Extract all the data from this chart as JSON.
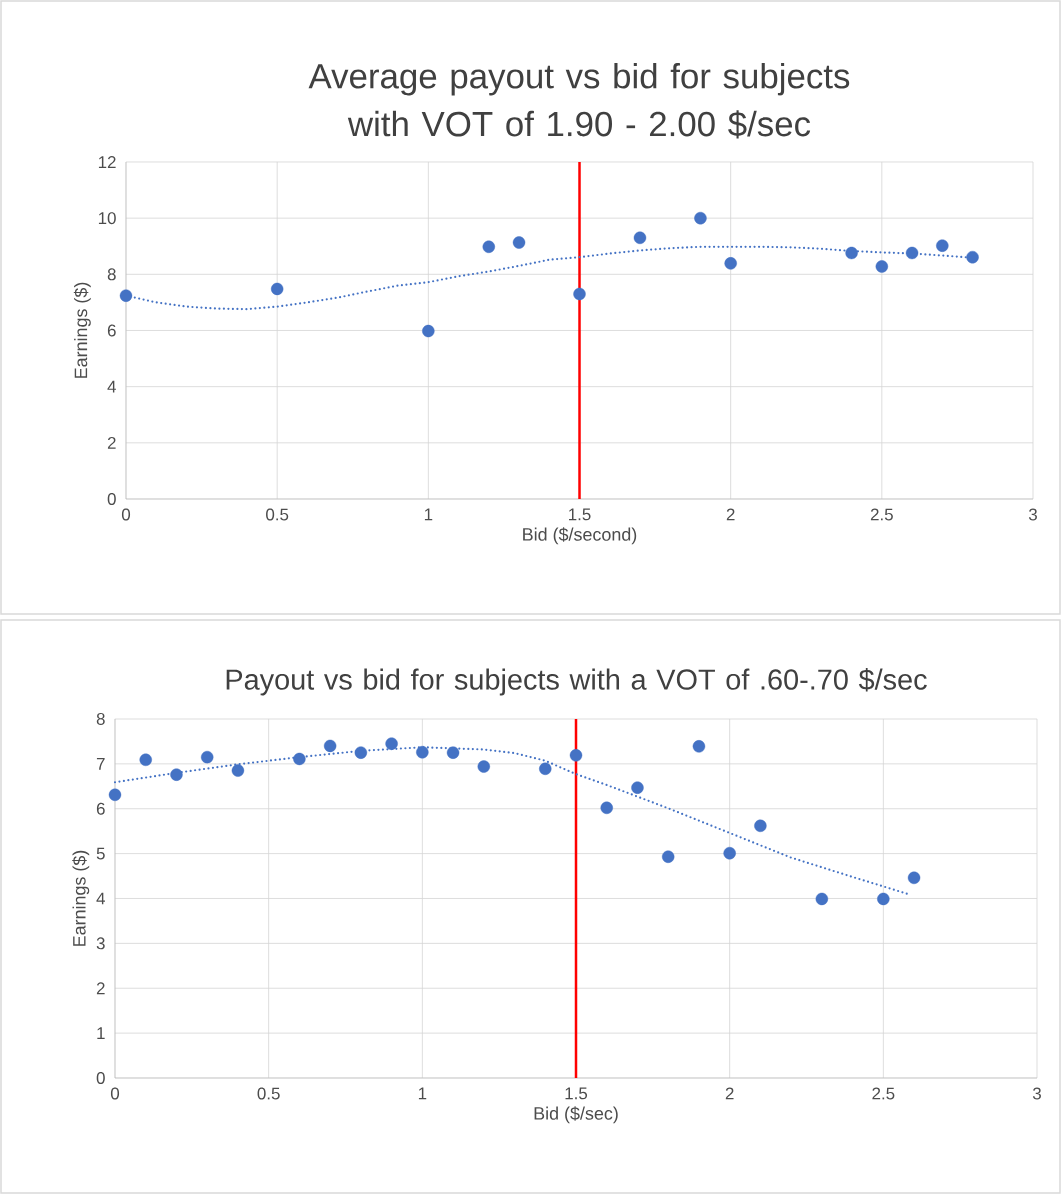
{
  "chart_data": [
    {
      "type": "scatter",
      "title": "Average payout vs bid for subjects with VOT of 1.90 - 2.00 $/sec",
      "xlabel": "Bid ($/second)",
      "ylabel": "Earnings ($)",
      "xlim": [
        0,
        3
      ],
      "xticks": [
        0,
        0.5,
        1,
        1.5,
        2,
        2.5,
        3
      ],
      "ylim": [
        0,
        12
      ],
      "yticks": [
        0,
        2,
        4,
        6,
        8,
        10,
        12
      ],
      "grid": true,
      "series": [
        {
          "type": "scatter",
          "color": "#4472c4",
          "marker": "circle",
          "x": [
            0,
            0.5,
            1.0,
            1.2,
            1.3,
            1.5,
            1.7,
            1.9,
            2.0,
            2.4,
            2.5,
            2.6,
            2.7,
            2.8
          ],
          "values": [
            7.24,
            7.48,
            5.98,
            8.98,
            9.13,
            7.3,
            9.3,
            10.0,
            8.39,
            8.76,
            8.28,
            8.76,
            9.02,
            8.61
          ]
        },
        {
          "type": "line",
          "color": "#4472c4",
          "marker": "none",
          "line_style": "dotted",
          "x": [
            0,
            0.1,
            0.2,
            0.3,
            0.4,
            0.5,
            0.6,
            0.7,
            0.8,
            0.9,
            1.0,
            1.1,
            1.2,
            1.3,
            1.4,
            1.5,
            1.6,
            1.7,
            1.8,
            1.9,
            2.0,
            2.1,
            2.2,
            2.3,
            2.4,
            2.5,
            2.6,
            2.7,
            2.8
          ],
          "values": [
            7.24,
            7.0,
            6.85,
            6.78,
            6.76,
            6.85,
            7.0,
            7.17,
            7.39,
            7.6,
            7.72,
            7.93,
            8.1,
            8.3,
            8.52,
            8.61,
            8.74,
            8.85,
            8.93,
            8.98,
            8.98,
            8.98,
            8.96,
            8.91,
            8.83,
            8.78,
            8.74,
            8.67,
            8.59
          ]
        }
      ],
      "ref_lines": [
        {
          "axis": "x",
          "value": 1.5,
          "color": "#ff0000"
        }
      ]
    },
    {
      "type": "scatter",
      "title": "Payout vs bid for subjects with a VOT of .60-.70 $/sec",
      "xlabel": "Bid ($/sec)",
      "ylabel": "Earnings ($)",
      "xlim": [
        0,
        3
      ],
      "xticks": [
        0,
        0.5,
        1,
        1.5,
        2,
        2.5,
        3
      ],
      "ylim": [
        0,
        8
      ],
      "yticks": [
        0,
        1,
        2,
        3,
        4,
        5,
        6,
        7,
        8
      ],
      "grid": true,
      "series": [
        {
          "type": "scatter",
          "color": "#4472c4",
          "marker": "circle",
          "x": [
            0,
            0.1,
            0.2,
            0.3,
            0.4,
            0.6,
            0.7,
            0.8,
            0.9,
            1.0,
            1.1,
            1.2,
            1.4,
            1.5,
            1.6,
            1.7,
            1.8,
            1.9,
            2.0,
            2.1,
            2.3,
            2.5,
            2.6
          ],
          "values": [
            6.31,
            7.09,
            6.76,
            7.15,
            6.85,
            7.11,
            7.4,
            7.25,
            7.45,
            7.26,
            7.25,
            6.94,
            6.89,
            7.19,
            6.02,
            6.47,
            4.93,
            7.39,
            5.01,
            5.62,
            3.99,
            3.99,
            4.46
          ]
        },
        {
          "type": "line",
          "color": "#4472c4",
          "marker": "none",
          "line_style": "dotted",
          "x": [
            0,
            0.2,
            0.4,
            0.6,
            0.8,
            1.0,
            1.2,
            1.3,
            1.4,
            1.5,
            1.6,
            1.8,
            2.0,
            2.2,
            2.4,
            2.58
          ],
          "values": [
            6.59,
            6.8,
            6.99,
            7.15,
            7.29,
            7.37,
            7.32,
            7.24,
            7.07,
            6.77,
            6.53,
            6.01,
            5.46,
            4.91,
            4.48,
            4.1
          ]
        }
      ],
      "ref_lines": [
        {
          "axis": "x",
          "value": 1.5,
          "color": "#ff0000"
        }
      ]
    }
  ]
}
